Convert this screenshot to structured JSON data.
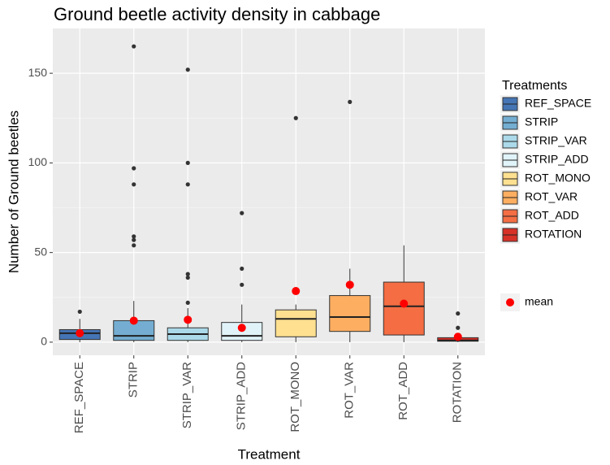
{
  "chart_data": {
    "type": "box",
    "title": "Ground beetle activity density in cabbage",
    "x_label": "Treatment",
    "y_label": "Number of Ground beetles",
    "legend_title": "Treatments",
    "mean_label": "mean",
    "mean_color": "#ff0000",
    "categories": [
      "REF_SPACE",
      "STRIP",
      "STRIP_VAR",
      "STRIP_ADD",
      "ROT_MONO",
      "ROT_VAR",
      "ROT_ADD",
      "ROTATION"
    ],
    "colors": [
      "#4575b4",
      "#74add1",
      "#abd9e9",
      "#e0f3f8",
      "#fee090",
      "#fdae61",
      "#f46d43",
      "#d73027"
    ],
    "boxes": [
      {
        "whisker_low": 0,
        "q1": 1.5,
        "median": 5,
        "q3": 7,
        "whisker_high": 13,
        "mean": 5,
        "outliers": [
          17
        ]
      },
      {
        "whisker_low": 0,
        "q1": 1,
        "median": 3.5,
        "q3": 12,
        "whisker_high": 23,
        "mean": 12,
        "outliers": [
          165,
          97,
          88,
          59,
          57,
          54
        ]
      },
      {
        "whisker_low": 0,
        "q1": 1,
        "median": 4.5,
        "q3": 8,
        "whisker_high": 19,
        "mean": 12.5,
        "outliers": [
          152,
          100,
          88,
          38,
          36,
          22
        ]
      },
      {
        "whisker_low": 0,
        "q1": 1,
        "median": 3.5,
        "q3": 11,
        "whisker_high": 21,
        "mean": 8,
        "outliers": [
          72,
          41,
          32
        ]
      },
      {
        "whisker_low": 0,
        "q1": 3,
        "median": 13,
        "q3": 18,
        "whisker_high": 21,
        "mean": 28.5,
        "outliers": [
          125
        ]
      },
      {
        "whisker_low": 0,
        "q1": 6,
        "median": 14,
        "q3": 26,
        "whisker_high": 41,
        "mean": 32,
        "outliers": [
          134
        ]
      },
      {
        "whisker_low": 0,
        "q1": 4,
        "median": 20,
        "q3": 33.5,
        "whisker_high": 54,
        "mean": 21.5,
        "outliers": []
      },
      {
        "whisker_low": 0,
        "q1": 0.5,
        "median": 1,
        "q3": 2.5,
        "whisker_high": 5,
        "mean": 3,
        "outliers": [
          16,
          8
        ]
      }
    ],
    "ylim": [
      -7.3,
      175
    ],
    "yticks": [
      0,
      50,
      100,
      150
    ],
    "minor_yticks": [
      25,
      75,
      125
    ],
    "grid": true
  }
}
